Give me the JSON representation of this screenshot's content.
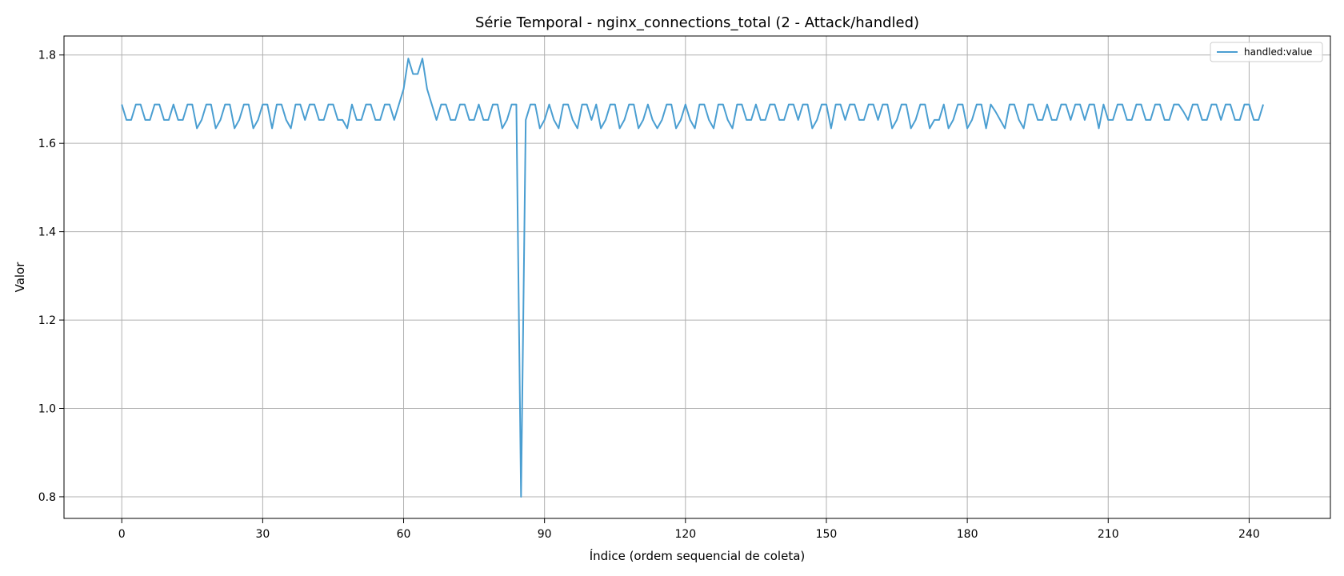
{
  "chart_data": {
    "type": "line",
    "title": "Série Temporal - nginx_connections_total (2 - Attack/handled)",
    "xlabel": "Índice (ordem sequencial de coleta)",
    "ylabel": "Valor",
    "xlim": [
      -12.3,
      257.3
    ],
    "ylim": [
      0.751,
      1.843
    ],
    "xticks": [
      0,
      30,
      60,
      90,
      120,
      150,
      180,
      210,
      240
    ],
    "yticks": [
      0.8,
      1.0,
      1.2,
      1.4,
      1.6,
      1.8
    ],
    "ytick_labels": [
      "0.8",
      "1.0",
      "1.2",
      "1.4",
      "1.6",
      "1.8"
    ],
    "grid": true,
    "legend_position": "top-right",
    "series": [
      {
        "name": "handled:value",
        "color": "#4a9ed1",
        "x_start": 0,
        "values": [
          1.688,
          1.653,
          1.653,
          1.688,
          1.688,
          1.653,
          1.653,
          1.688,
          1.688,
          1.653,
          1.653,
          1.688,
          1.653,
          1.653,
          1.688,
          1.688,
          1.634,
          1.653,
          1.688,
          1.688,
          1.634,
          1.653,
          1.688,
          1.688,
          1.634,
          1.653,
          1.688,
          1.688,
          1.634,
          1.653,
          1.688,
          1.688,
          1.634,
          1.688,
          1.688,
          1.653,
          1.634,
          1.688,
          1.688,
          1.653,
          1.688,
          1.688,
          1.653,
          1.653,
          1.688,
          1.688,
          1.653,
          1.653,
          1.634,
          1.688,
          1.653,
          1.653,
          1.688,
          1.688,
          1.653,
          1.653,
          1.688,
          1.688,
          1.653,
          1.688,
          1.723,
          1.792,
          1.757,
          1.757,
          1.792,
          1.723,
          1.688,
          1.653,
          1.688,
          1.688,
          1.653,
          1.653,
          1.688,
          1.688,
          1.653,
          1.653,
          1.688,
          1.653,
          1.653,
          1.688,
          1.688,
          1.634,
          1.653,
          1.688,
          1.688,
          0.8,
          1.653,
          1.688,
          1.688,
          1.634,
          1.653,
          1.688,
          1.653,
          1.634,
          1.688,
          1.688,
          1.653,
          1.634,
          1.688,
          1.688,
          1.653,
          1.688,
          1.634,
          1.653,
          1.688,
          1.688,
          1.634,
          1.653,
          1.688,
          1.688,
          1.634,
          1.653,
          1.688,
          1.653,
          1.634,
          1.653,
          1.688,
          1.688,
          1.634,
          1.653,
          1.688,
          1.653,
          1.634,
          1.688,
          1.688,
          1.653,
          1.634,
          1.688,
          1.688,
          1.653,
          1.634,
          1.688,
          1.688,
          1.653,
          1.653,
          1.688,
          1.653,
          1.653,
          1.688,
          1.688,
          1.653,
          1.653,
          1.688,
          1.688,
          1.653,
          1.688,
          1.688,
          1.634,
          1.653,
          1.688,
          1.688,
          1.634,
          1.688,
          1.688,
          1.653,
          1.688,
          1.688,
          1.653,
          1.653,
          1.688,
          1.688,
          1.653,
          1.688,
          1.688,
          1.634,
          1.653,
          1.688,
          1.688,
          1.634,
          1.653,
          1.688,
          1.688,
          1.634,
          1.653,
          1.653,
          1.688,
          1.634,
          1.653,
          1.688,
          1.688,
          1.634,
          1.653,
          1.688,
          1.688,
          1.634,
          1.688,
          1.672,
          1.653,
          1.634,
          1.688,
          1.688,
          1.653,
          1.634,
          1.688,
          1.688,
          1.653,
          1.653,
          1.688,
          1.653,
          1.653,
          1.688,
          1.688,
          1.653,
          1.688,
          1.688,
          1.653,
          1.688,
          1.688,
          1.634,
          1.688,
          1.653,
          1.653,
          1.688,
          1.688,
          1.653,
          1.653,
          1.688,
          1.688,
          1.653,
          1.653,
          1.688,
          1.688,
          1.653,
          1.653,
          1.688,
          1.688,
          1.672,
          1.653,
          1.688,
          1.688,
          1.653,
          1.653,
          1.688,
          1.688,
          1.653,
          1.688,
          1.688,
          1.653,
          1.653,
          1.688,
          1.688,
          1.653,
          1.653,
          1.688
        ]
      }
    ]
  }
}
